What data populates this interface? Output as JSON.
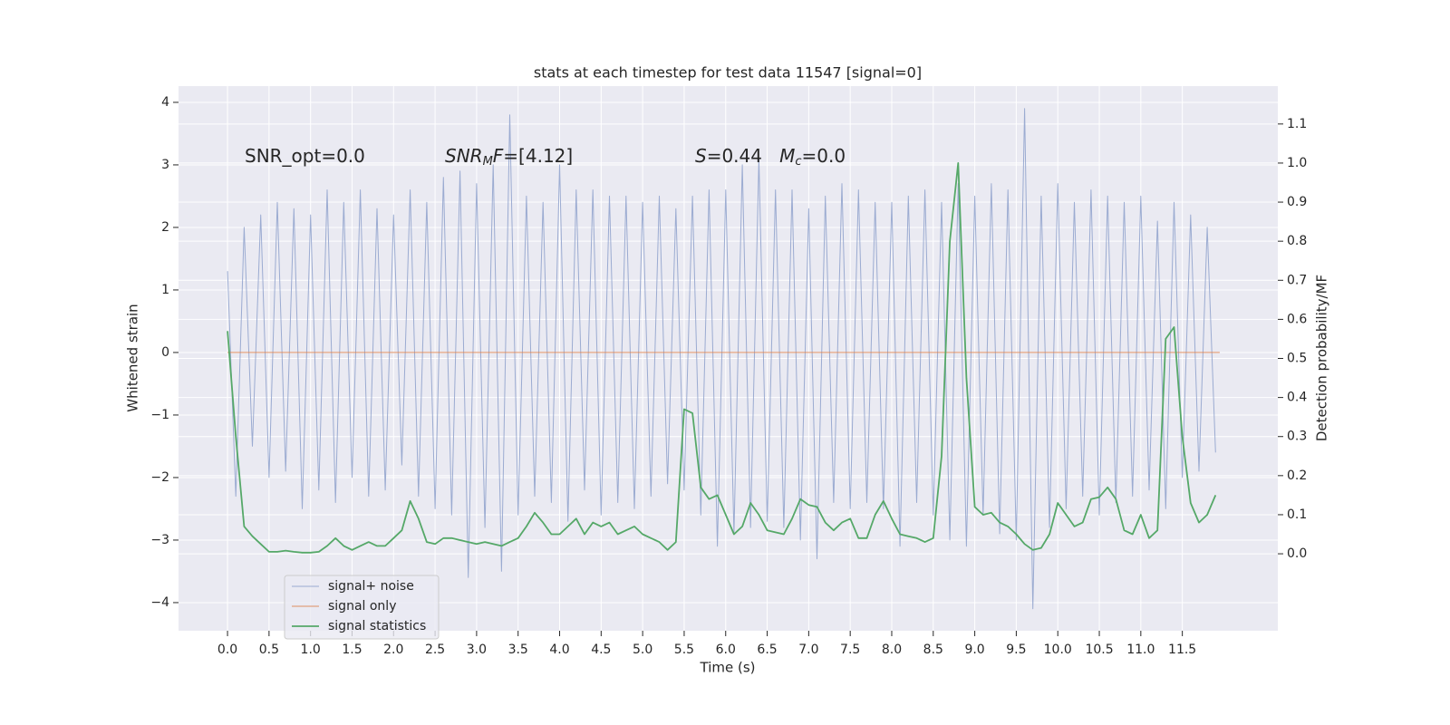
{
  "chart_data": {
    "type": "line",
    "title": "stats at each timestep for test data 11547 [signal=0]",
    "xlabel": "Time (s)",
    "ylabel": "Whitened strain",
    "y2label": "Detection probability/MF",
    "annotations": [
      [
        {
          "text": "SNR_opt=0.0",
          "style": "normal"
        }
      ],
      [
        {
          "text": "SNR",
          "style": "italic"
        },
        {
          "text": "M",
          "style": "sub"
        },
        {
          "text": "F",
          "style": "italic"
        },
        {
          "text": "=[4.12]",
          "style": "normal"
        }
      ],
      [
        {
          "text": "S",
          "style": "italic"
        },
        {
          "text": "=0.44   ",
          "style": "normal"
        },
        {
          "text": "M",
          "style": "italic"
        },
        {
          "text": "c",
          "style": "sub"
        },
        {
          "text": "=0.0",
          "style": "normal"
        }
      ]
    ],
    "xlim": [
      -0.59,
      12.65
    ],
    "ylim": [
      -4.45,
      4.26
    ],
    "y2lim": [
      -0.197,
      1.197
    ],
    "xticks": [
      {
        "value": 0,
        "label": "0.0"
      },
      {
        "value": 0.5,
        "label": "0.5"
      },
      {
        "value": 1,
        "label": "1.0"
      },
      {
        "value": 1.5,
        "label": "1.5"
      },
      {
        "value": 2,
        "label": "2.0"
      },
      {
        "value": 2.5,
        "label": "2.5"
      },
      {
        "value": 3,
        "label": "3.0"
      },
      {
        "value": 3.5,
        "label": "3.5"
      },
      {
        "value": 4,
        "label": "4.0"
      },
      {
        "value": 4.5,
        "label": "4.5"
      },
      {
        "value": 5,
        "label": "5.0"
      },
      {
        "value": 5.5,
        "label": "5.5"
      },
      {
        "value": 6,
        "label": "6.0"
      },
      {
        "value": 6.5,
        "label": "6.5"
      },
      {
        "value": 7,
        "label": "7.0"
      },
      {
        "value": 7.5,
        "label": "7.5"
      },
      {
        "value": 8,
        "label": "8.0"
      },
      {
        "value": 8.5,
        "label": "8.5"
      },
      {
        "value": 9,
        "label": "9.0"
      },
      {
        "value": 9.5,
        "label": "9.5"
      },
      {
        "value": 10,
        "label": "10.0"
      },
      {
        "value": 10.5,
        "label": "10.5"
      },
      {
        "value": 11,
        "label": "11.0"
      },
      {
        "value": 11.5,
        "label": "11.5"
      }
    ],
    "yticks": [
      {
        "value": -4,
        "label": "−4"
      },
      {
        "value": -3,
        "label": "−3"
      },
      {
        "value": -2,
        "label": "−2"
      },
      {
        "value": -1,
        "label": "−1"
      },
      0,
      1,
      2,
      3,
      4
    ],
    "y2ticks": [
      {
        "value": 0,
        "label": "0.0"
      },
      {
        "value": 0.1,
        "label": "0.1"
      },
      {
        "value": 0.2,
        "label": "0.2"
      },
      {
        "value": 0.3,
        "label": "0.3"
      },
      {
        "value": 0.4,
        "label": "0.4"
      },
      {
        "value": 0.5,
        "label": "0.5"
      },
      {
        "value": 0.6,
        "label": "0.6"
      },
      {
        "value": 0.7,
        "label": "0.7"
      },
      {
        "value": 0.8,
        "label": "0.8"
      },
      {
        "value": 0.9,
        "label": "0.9"
      },
      {
        "value": 1,
        "label": "1.0"
      },
      {
        "value": 1.1,
        "label": "1.1"
      }
    ],
    "grid": true,
    "legend": "lower left",
    "x": [
      0,
      0.1,
      0.2,
      0.3,
      0.4,
      0.5,
      0.6,
      0.7,
      0.8,
      0.9,
      1,
      1.1,
      1.2,
      1.3,
      1.4,
      1.5,
      1.6,
      1.7,
      1.8,
      1.9,
      2,
      2.1,
      2.2,
      2.3,
      2.4,
      2.5,
      2.6,
      2.7,
      2.8,
      2.9,
      3,
      3.1,
      3.2,
      3.3,
      3.4,
      3.5,
      3.6,
      3.7,
      3.8,
      3.9,
      4,
      4.1,
      4.2,
      4.3,
      4.4,
      4.5,
      4.6,
      4.7,
      4.8,
      4.9,
      5,
      5.1,
      5.2,
      5.3,
      5.4,
      5.5,
      5.6,
      5.7,
      5.8,
      5.9,
      6,
      6.1,
      6.2,
      6.3,
      6.4,
      6.5,
      6.6,
      6.7,
      6.8,
      6.9,
      7,
      7.1,
      7.2,
      7.3,
      7.4,
      7.5,
      7.6,
      7.7,
      7.8,
      7.9,
      8,
      8.1,
      8.2,
      8.3,
      8.4,
      8.5,
      8.6,
      8.7,
      8.8,
      8.9,
      9,
      9.1,
      9.2,
      9.3,
      9.4,
      9.5,
      9.6,
      9.7,
      9.8,
      9.9,
      10,
      10.1,
      10.2,
      10.3,
      10.4,
      10.5,
      10.6,
      10.7,
      10.8,
      10.9,
      11,
      11.1,
      11.2,
      11.3,
      11.4,
      11.5,
      11.6,
      11.7,
      11.8,
      11.9
    ],
    "series": [
      {
        "name": "signal+ noise",
        "color": "#8da0cb",
        "values": [
          1.3,
          -2.3,
          2.0,
          -1.5,
          2.2,
          -2.0,
          2.4,
          -1.9,
          2.3,
          -2.5,
          2.2,
          -2.2,
          2.6,
          -2.4,
          2.4,
          -2.0,
          2.6,
          -2.3,
          2.3,
          -2.2,
          2.2,
          -1.8,
          2.6,
          -2.3,
          2.4,
          -2.5,
          2.8,
          -2.6,
          2.9,
          -3.6,
          2.7,
          -2.8,
          3.0,
          -3.5,
          3.8,
          -2.6,
          2.5,
          -2.3,
          2.4,
          -2.4,
          3.0,
          -2.7,
          2.6,
          -2.2,
          2.6,
          -2.6,
          2.5,
          -2.4,
          2.5,
          -2.5,
          2.4,
          -2.3,
          2.5,
          -2.1,
          2.3,
          -2.2,
          2.5,
          -2.6,
          2.6,
          -3.1,
          2.6,
          -2.9,
          3.0,
          -2.8,
          3.1,
          -2.7,
          2.6,
          -2.8,
          2.6,
          -3.0,
          2.3,
          -3.3,
          2.5,
          -2.4,
          2.7,
          -2.5,
          2.6,
          -2.4,
          2.4,
          -2.5,
          2.4,
          -3.1,
          2.5,
          -2.4,
          2.6,
          -2.6,
          2.4,
          -3.0,
          2.7,
          -3.1,
          2.5,
          -2.6,
          2.7,
          -2.9,
          2.6,
          -3.0,
          3.9,
          -4.1,
          2.5,
          -2.8,
          2.7,
          -2.5,
          2.4,
          -2.3,
          2.6,
          -2.6,
          2.5,
          -2.4,
          2.4,
          -2.3,
          2.5,
          -2.2,
          2.1,
          -2.5,
          2.4,
          -2.0,
          2.2,
          -1.9,
          2.0,
          -1.6
        ]
      },
      {
        "name": "signal only",
        "color": "#dd8452",
        "x": [
          0,
          11.95
        ],
        "values": [
          0,
          0
        ]
      },
      {
        "name": "signal statistics",
        "color": "#55a868",
        "axis": "y2",
        "values": [
          0.57,
          0.3,
          0.07,
          0.045,
          0.025,
          0.005,
          0.005,
          0.008,
          0.005,
          0.003,
          0.003,
          0.005,
          0.02,
          0.04,
          0.02,
          0.01,
          0.02,
          0.03,
          0.02,
          0.02,
          0.04,
          0.06,
          0.135,
          0.09,
          0.03,
          0.025,
          0.04,
          0.04,
          0.035,
          0.03,
          0.025,
          0.03,
          0.025,
          0.02,
          0.03,
          0.04,
          0.07,
          0.105,
          0.08,
          0.05,
          0.05,
          0.07,
          0.09,
          0.05,
          0.08,
          0.07,
          0.08,
          0.05,
          0.06,
          0.07,
          0.05,
          0.04,
          0.03,
          0.01,
          0.03,
          0.37,
          0.36,
          0.17,
          0.14,
          0.15,
          0.1,
          0.05,
          0.07,
          0.13,
          0.1,
          0.06,
          0.055,
          0.05,
          0.09,
          0.14,
          0.125,
          0.12,
          0.08,
          0.06,
          0.08,
          0.09,
          0.04,
          0.04,
          0.1,
          0.135,
          0.09,
          0.05,
          0.045,
          0.04,
          0.03,
          0.04,
          0.25,
          0.8,
          1.0,
          0.45,
          0.12,
          0.1,
          0.105,
          0.08,
          0.07,
          0.05,
          0.025,
          0.01,
          0.015,
          0.05,
          0.13,
          0.1,
          0.07,
          0.08,
          0.14,
          0.145,
          0.17,
          0.14,
          0.06,
          0.05,
          0.1,
          0.04,
          0.06,
          0.55,
          0.58,
          0.3,
          0.13,
          0.08,
          0.1,
          0.15
        ]
      }
    ]
  }
}
